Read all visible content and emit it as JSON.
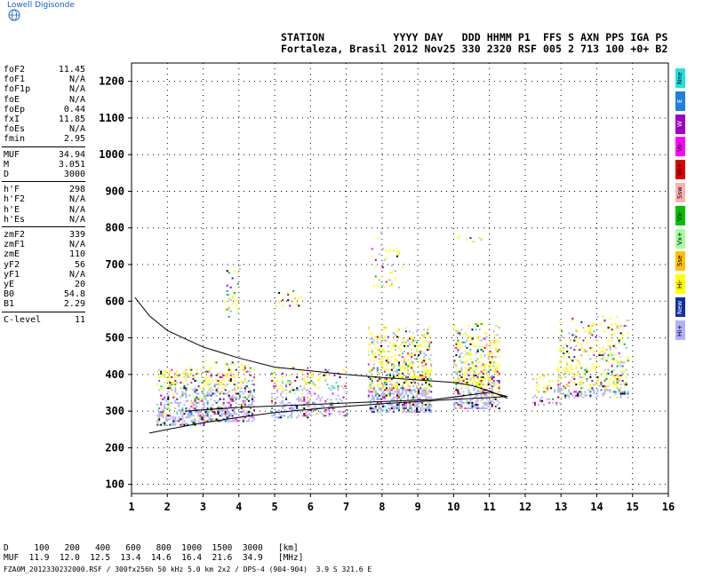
{
  "header": {
    "logo_text": "Lowell Digisonde",
    "line1": "STATION           YYYY DAY   DDD HHMM P1  FFS S AXN PPS IGA PS",
    "line2": "Fortaleza, Brasil 2012 Nov25 330 2320 RSF 005 2 713 100 +0+ B2"
  },
  "params": [
    {
      "key": "foF2",
      "value": "11.45"
    },
    {
      "key": "foF1",
      "value": "N/A"
    },
    {
      "key": "foF1p",
      "value": "N/A"
    },
    {
      "key": "foE",
      "value": "N/A"
    },
    {
      "key": "foEp",
      "value": "0.44"
    },
    {
      "key": "fxI",
      "value": "11.85"
    },
    {
      "key": "foEs",
      "value": "N/A"
    },
    {
      "key": "fmin",
      "value": "2.95"
    },
    {
      "key": "MUF",
      "value": "34.94"
    },
    {
      "key": "M",
      "value": "3.051"
    },
    {
      "key": "D",
      "value": "3000"
    },
    {
      "key": "h'F",
      "value": "298"
    },
    {
      "key": "h'F2",
      "value": "N/A"
    },
    {
      "key": "h'E",
      "value": "N/A"
    },
    {
      "key": "h'Es",
      "value": "N/A"
    },
    {
      "key": "zmF2",
      "value": "339"
    },
    {
      "key": "zmF1",
      "value": "N/A"
    },
    {
      "key": "zmE",
      "value": "110"
    },
    {
      "key": "yF2",
      "value": "56"
    },
    {
      "key": "yF1",
      "value": "N/A"
    },
    {
      "key": "yE",
      "value": "20"
    },
    {
      "key": "B0",
      "value": "54.8"
    },
    {
      "key": "B1",
      "value": "2.29"
    },
    {
      "key": "C-level",
      "value": "11"
    }
  ],
  "legend": [
    {
      "label": "Nne",
      "color": "#22e0e0"
    },
    {
      "label": "E",
      "color": "#1f7fe0"
    },
    {
      "label": "W",
      "color": "#a000c0"
    },
    {
      "label": "Vo-",
      "color": "#ff00ff"
    },
    {
      "label": "Vo+",
      "color": "#e00000"
    },
    {
      "label": "Ssw",
      "color": "#ffb0b0"
    },
    {
      "label": "Vx-",
      "color": "#00c000"
    },
    {
      "label": "Vx+",
      "color": "#a0ffa0"
    },
    {
      "label": "Sse",
      "color": "#ffc000"
    },
    {
      "label": "Hi-",
      "color": "#ffff00"
    },
    {
      "label": "New",
      "color": "#1030a0"
    },
    {
      "label": "Hi+",
      "color": "#b0b0ff"
    }
  ],
  "muf_table": {
    "d_row": "D     100   200   400   600   800  1000  1500  3000   [km]",
    "muf_row": "MUF  11.9  12.0  12.5  13.4  14.6  16.4  21.6  34.9   [MHz]"
  },
  "footer": "FZA0M_2012330232000.RSF / 300fx256h 50 kHz 5.0 km 2x2 / DPS-4 (904-904)  3.9 S 321.6 E",
  "chart_data": {
    "type": "scatter",
    "title": "",
    "xlabel": "",
    "ylabel": "",
    "xlim": [
      1,
      16
    ],
    "ylim": [
      75,
      1250
    ],
    "x_ticks": [
      1,
      2,
      3,
      4,
      5,
      6,
      7,
      8,
      9,
      10,
      11,
      12,
      13,
      14,
      15,
      16
    ],
    "y_ticks": [
      100,
      200,
      300,
      400,
      500,
      600,
      700,
      800,
      900,
      1000,
      1100,
      1200
    ],
    "grid": "dotted",
    "series": [
      {
        "kind": "trace",
        "points": [
          [
            1.1,
            610
          ],
          [
            1.5,
            560
          ],
          [
            2,
            520
          ],
          [
            3,
            475
          ],
          [
            4,
            445
          ],
          [
            5,
            420
          ],
          [
            6,
            410
          ],
          [
            7,
            400
          ],
          [
            8,
            392
          ],
          [
            9,
            385
          ],
          [
            10,
            378
          ],
          [
            10.5,
            370
          ],
          [
            11,
            355
          ],
          [
            11.5,
            335
          ]
        ]
      },
      {
        "kind": "trace",
        "points": [
          [
            1.5,
            240
          ],
          [
            2,
            250
          ],
          [
            3,
            268
          ],
          [
            4,
            283
          ],
          [
            5,
            296
          ],
          [
            6,
            305
          ],
          [
            7,
            313
          ],
          [
            8,
            320
          ],
          [
            9,
            326
          ],
          [
            10,
            332
          ],
          [
            11,
            337
          ],
          [
            11.5,
            340
          ]
        ]
      },
      {
        "kind": "trace",
        "points": [
          [
            2.5,
            300
          ],
          [
            4,
            310
          ],
          [
            6,
            318
          ],
          [
            8,
            326
          ],
          [
            9.5,
            332
          ],
          [
            10.5,
            345
          ],
          [
            11,
            352
          ],
          [
            11.5,
            340
          ]
        ]
      }
    ],
    "echo_clusters": [
      {
        "f": [
          1.7,
          3.0
        ],
        "h": [
          265,
          420
        ],
        "density": 0.55
      },
      {
        "f": [
          3.0,
          4.4
        ],
        "h": [
          275,
          440
        ],
        "density": 0.5
      },
      {
        "f": [
          4.9,
          5.9
        ],
        "h": [
          285,
          420
        ],
        "density": 0.4
      },
      {
        "f": [
          5.9,
          7.0
        ],
        "h": [
          290,
          420
        ],
        "density": 0.3
      },
      {
        "f": [
          7.6,
          9.4
        ],
        "h": [
          300,
          530
        ],
        "density": 0.55
      },
      {
        "f": [
          10.0,
          11.3
        ],
        "h": [
          310,
          540
        ],
        "density": 0.5
      },
      {
        "f": [
          12.2,
          13.0
        ],
        "h": [
          320,
          400
        ],
        "density": 0.25
      },
      {
        "f": [
          12.9,
          14.9
        ],
        "h": [
          340,
          560
        ],
        "density": 0.3
      },
      {
        "f": [
          3.6,
          4.0
        ],
        "h": [
          560,
          700
        ],
        "density": 0.2
      },
      {
        "f": [
          4.9,
          5.7
        ],
        "h": [
          590,
          630
        ],
        "density": 0.2
      },
      {
        "f": [
          7.7,
          8.6
        ],
        "h": [
          640,
          790
        ],
        "density": 0.1
      },
      {
        "f": [
          10.0,
          10.8
        ],
        "h": [
          760,
          785
        ],
        "density": 0.15
      }
    ]
  }
}
